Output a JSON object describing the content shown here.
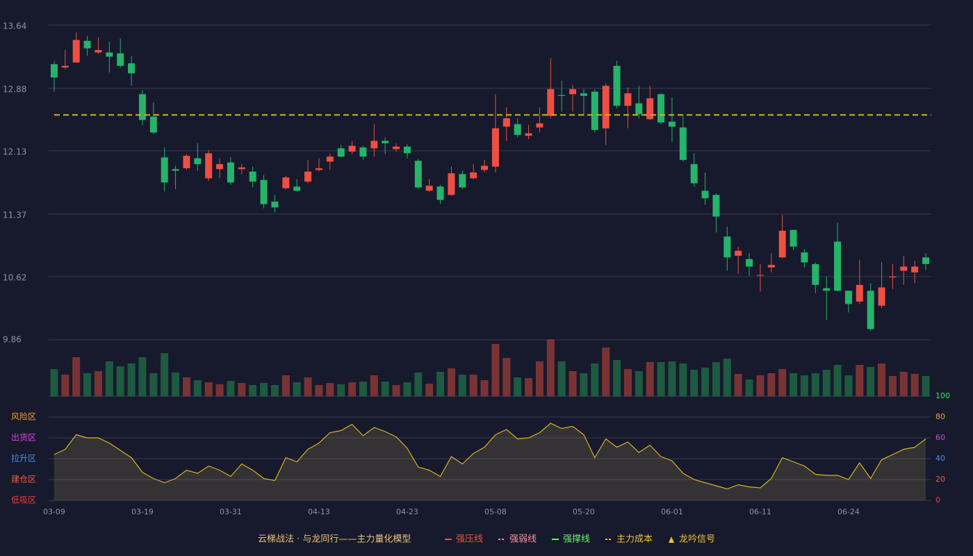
{
  "chart_data": [
    {
      "type": "candlestick",
      "open": [
        13.17,
        13.13,
        13.19,
        13.45,
        13.31,
        13.31,
        13.3,
        13.18,
        12.81,
        12.54,
        12.05,
        11.91,
        11.92,
        12.04,
        11.8,
        11.91,
        11.99,
        11.91,
        11.88,
        11.78,
        11.52,
        11.68,
        11.7,
        11.76,
        11.9,
        12.0,
        12.16,
        12.12,
        12.17,
        12.16,
        12.25,
        12.15,
        12.18,
        12.01,
        11.65,
        11.7,
        11.6,
        11.85,
        11.8,
        11.9,
        11.94,
        12.42,
        12.45,
        12.31,
        12.41,
        12.55,
        12.8,
        12.81,
        12.82,
        12.84,
        12.4,
        13.15,
        12.67,
        12.7,
        12.51,
        12.81,
        12.48,
        12.41,
        11.97,
        11.65,
        11.6,
        11.1,
        10.87,
        10.83,
        10.64,
        10.73,
        10.85,
        11.18,
        10.91,
        10.77,
        10.48,
        11.04,
        10.45,
        10.32,
        10.45,
        10.27,
        10.61,
        10.69,
        10.67,
        10.85
      ],
      "high": [
        13.21,
        13.34,
        13.55,
        13.51,
        13.49,
        13.44,
        13.48,
        13.27,
        12.86,
        12.71,
        12.17,
        11.95,
        12.09,
        12.22,
        12.14,
        12.04,
        12.05,
        11.97,
        11.94,
        11.84,
        11.6,
        11.83,
        11.79,
        12.02,
        12.04,
        12.1,
        12.2,
        12.25,
        12.19,
        12.45,
        12.29,
        12.22,
        12.21,
        12.03,
        11.79,
        11.72,
        11.94,
        11.89,
        11.97,
        12.02,
        12.81,
        12.65,
        12.52,
        12.44,
        12.65,
        13.24,
        12.97,
        12.92,
        12.87,
        12.87,
        12.94,
        13.21,
        12.89,
        12.91,
        12.91,
        12.82,
        12.77,
        12.55,
        12.1,
        11.87,
        11.62,
        11.22,
        10.98,
        10.9,
        10.77,
        10.9,
        11.36,
        11.18,
        10.95,
        10.79,
        10.62,
        11.27,
        10.45,
        10.82,
        10.54,
        10.79,
        10.77,
        10.87,
        10.81,
        10.9
      ],
      "low": [
        12.84,
        13.11,
        13.19,
        13.27,
        13.29,
        13.07,
        13.13,
        12.91,
        12.44,
        12.33,
        11.64,
        11.67,
        11.9,
        11.89,
        11.77,
        11.8,
        11.72,
        11.85,
        11.69,
        11.44,
        11.39,
        11.66,
        11.64,
        11.74,
        11.88,
        11.9,
        12.05,
        12.09,
        12.02,
        12.06,
        12.09,
        12.12,
        12.04,
        11.67,
        11.64,
        11.49,
        11.59,
        11.67,
        11.79,
        11.87,
        11.87,
        12.25,
        12.29,
        12.27,
        12.35,
        12.52,
        12.6,
        12.6,
        12.55,
        12.35,
        12.2,
        12.64,
        12.4,
        12.52,
        12.5,
        12.45,
        12.24,
        12.0,
        11.7,
        11.48,
        11.15,
        10.69,
        10.65,
        10.63,
        10.44,
        10.67,
        10.84,
        10.94,
        10.73,
        10.42,
        10.1,
        10.44,
        10.19,
        10.29,
        9.97,
        10.24,
        10.47,
        10.52,
        10.54,
        10.7
      ],
      "close": [
        13.01,
        13.15,
        13.46,
        13.36,
        13.34,
        13.26,
        13.15,
        13.06,
        12.5,
        12.35,
        11.75,
        11.89,
        12.07,
        11.97,
        12.1,
        11.97,
        11.75,
        11.93,
        11.76,
        11.49,
        11.45,
        11.81,
        11.65,
        11.88,
        11.92,
        12.06,
        12.06,
        12.19,
        12.06,
        12.25,
        12.22,
        12.18,
        12.1,
        11.69,
        11.71,
        11.54,
        11.86,
        11.69,
        11.87,
        11.95,
        12.4,
        12.52,
        12.32,
        12.34,
        12.46,
        12.87,
        12.79,
        12.87,
        12.79,
        12.38,
        12.91,
        12.67,
        12.82,
        12.57,
        12.76,
        12.47,
        12.42,
        12.02,
        11.74,
        11.56,
        11.34,
        10.85,
        10.93,
        10.74,
        10.64,
        10.76,
        11.17,
        10.98,
        10.79,
        10.52,
        10.45,
        10.45,
        10.29,
        10.52,
        9.99,
        10.49,
        10.62,
        10.74,
        10.74,
        10.77
      ],
      "up_color": "#ef4f43",
      "down_color": "#26b36a",
      "cost_line": 12.56,
      "cost_color": "#e0b020",
      "ylim": [
        9.86,
        13.64
      ],
      "yticks": [
        9.86,
        10.62,
        11.37,
        12.13,
        12.88,
        13.64
      ],
      "grid": true
    },
    {
      "type": "bar",
      "values": [
        40,
        32,
        57,
        34,
        37,
        51,
        44,
        48,
        57,
        34,
        63,
        35,
        28,
        24,
        21,
        18,
        23,
        20,
        17,
        20,
        17,
        31,
        21,
        28,
        17,
        20,
        18,
        21,
        22,
        31,
        22,
        17,
        21,
        35,
        19,
        36,
        41,
        32,
        32,
        24,
        76,
        56,
        28,
        27,
        51,
        83,
        51,
        37,
        34,
        48,
        71,
        53,
        40,
        37,
        50,
        50,
        51,
        48,
        39,
        42,
        50,
        55,
        33,
        25,
        31,
        34,
        40,
        34,
        31,
        34,
        39,
        46,
        31,
        46,
        43,
        48,
        30,
        36,
        33,
        30
      ],
      "up_color": "#7a3334",
      "down_color": "#1d5a40",
      "ylim": [
        0,
        83
      ]
    },
    {
      "type": "line",
      "categories": [
        "03-09",
        null,
        null,
        null,
        null,
        null,
        null,
        null,
        "03-19",
        null,
        null,
        null,
        null,
        null,
        null,
        null,
        "03-31",
        null,
        null,
        null,
        null,
        null,
        null,
        null,
        "04-13",
        null,
        null,
        null,
        null,
        null,
        null,
        null,
        "04-23",
        null,
        null,
        null,
        null,
        null,
        null,
        null,
        "05-08",
        null,
        null,
        null,
        null,
        null,
        null,
        null,
        "05-20",
        null,
        null,
        null,
        null,
        null,
        null,
        null,
        "06-01",
        null,
        null,
        null,
        null,
        null,
        null,
        null,
        "06-11",
        null,
        null,
        null,
        null,
        null,
        null,
        null,
        "06-24",
        null,
        null,
        null,
        null,
        null,
        null,
        null
      ],
      "values": [
        44,
        49,
        63,
        60,
        60,
        55,
        48,
        41,
        27,
        21,
        17,
        21,
        29,
        26,
        33,
        29,
        23,
        35,
        29,
        21,
        19,
        41,
        37,
        49,
        55,
        65,
        67,
        73,
        62,
        70,
        66,
        61,
        50,
        32,
        29,
        23,
        42,
        35,
        45,
        51,
        63,
        68,
        59,
        60,
        65,
        74,
        69,
        71,
        63,
        41,
        59,
        51,
        56,
        46,
        53,
        42,
        38,
        26,
        20,
        17,
        14,
        11,
        15,
        13,
        12,
        21,
        41,
        37,
        33,
        25,
        24,
        24,
        20,
        36,
        21,
        39,
        44,
        49,
        51,
        59
      ],
      "color": "#d8b324",
      "ylim": [
        0,
        100
      ],
      "yticks": [
        0,
        20,
        40,
        60,
        80,
        100
      ],
      "ytick_colors": [
        "#ef3b3b",
        "#ef5a4a",
        "#4a90e8",
        "#e040e0",
        "#f0a030",
        "#3fe06a"
      ],
      "zone_labels": [
        {
          "value": 80,
          "label": "风险区",
          "color": "#f0a030"
        },
        {
          "value": 60,
          "label": "出货区",
          "color": "#e040e0"
        },
        {
          "value": 40,
          "label": "拉升区",
          "color": "#4a90e8"
        },
        {
          "value": 20,
          "label": "建仓区",
          "color": "#ef5a4a"
        },
        {
          "value": 0,
          "label": "低吸区",
          "color": "#ef3b3b"
        }
      ],
      "grid": true
    }
  ],
  "legend": [
    {
      "label": "云梯战法 · 与龙同行——主力量化模型",
      "color": "#e8c07a"
    },
    {
      "label": "强压线",
      "color": "#ef4f43",
      "symbol": "line"
    },
    {
      "label": "强弱线",
      "color": "#ff8fa0",
      "symbol": "dash"
    },
    {
      "label": "强撑线",
      "color": "#6cf06c",
      "symbol": "line"
    },
    {
      "label": "主力成本",
      "color": "#f0c040",
      "symbol": "dash"
    },
    {
      "label": "龙吟信号",
      "color": "#f0c040",
      "symbol": "triangle"
    }
  ]
}
